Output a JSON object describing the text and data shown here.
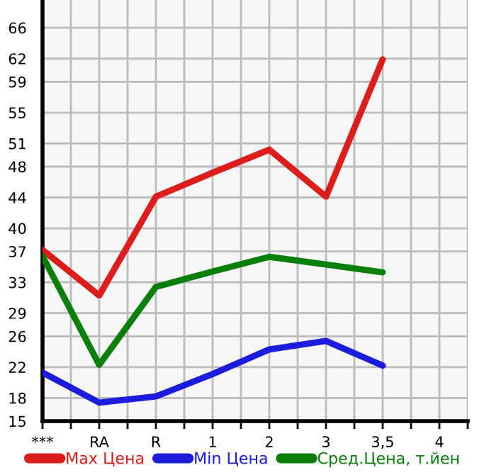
{
  "chart_data": {
    "type": "line",
    "categories": [
      "***",
      "RA",
      "R",
      "1",
      "2",
      "3",
      "3,5",
      "4"
    ],
    "series": [
      {
        "name": "Max Цена",
        "color": "#dd1c1c",
        "values": [
          37.2,
          31.3,
          44.1,
          47.2,
          50.2,
          44.1,
          61.9,
          null
        ]
      },
      {
        "name": "Min Цена",
        "color": "#1c1cdd",
        "values": [
          21.3,
          17.4,
          18.2,
          21.1,
          24.3,
          25.4,
          22.2,
          null
        ]
      },
      {
        "name": "Сред.Цена, т.йен",
        "color": "#0a7f0a",
        "values": [
          36.4,
          22.3,
          32.4,
          34.4,
          36.3,
          35.3,
          34.3,
          null
        ]
      }
    ],
    "ylim": [
      15,
      69.6
    ],
    "yticks": [
      15,
      18,
      22,
      26,
      29,
      33,
      37,
      40,
      44,
      48,
      51,
      55,
      59,
      62,
      66
    ],
    "grid": true,
    "legend": "bottom",
    "marker": "none",
    "line_style": "solid"
  }
}
